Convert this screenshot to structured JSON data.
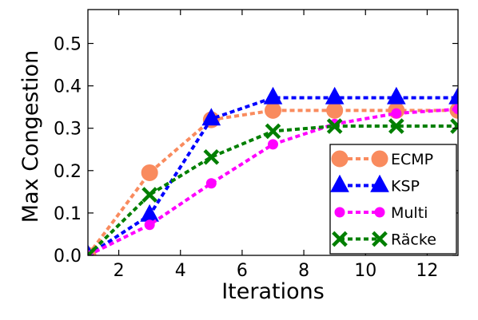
{
  "chart_data": {
    "type": "line",
    "title": "",
    "xlabel": "Iterations",
    "ylabel": "Max Congestion",
    "xlim": [
      1,
      13
    ],
    "ylim": [
      0.0,
      0.58
    ],
    "xticks": [
      2,
      4,
      6,
      8,
      10,
      12
    ],
    "yticks": [
      0.0,
      0.1,
      0.2,
      0.3,
      0.4,
      0.5
    ],
    "ytick_labels": [
      "0.0",
      "0.1",
      "0.2",
      "0.3",
      "0.4",
      "0.5"
    ],
    "grid": false,
    "legend_position": "lower-right",
    "x": [
      1,
      3,
      5,
      7,
      9,
      11,
      13
    ],
    "series": [
      {
        "name": "ECMP",
        "values": [
          0.0,
          0.195,
          0.32,
          0.342,
          0.342,
          0.342,
          0.342
        ],
        "color": "#f98b5e",
        "marker": "circle"
      },
      {
        "name": "KSP",
        "values": [
          0.0,
          0.095,
          0.322,
          0.372,
          0.372,
          0.372,
          0.372
        ],
        "color": "#0000ff",
        "marker": "triangle"
      },
      {
        "name": "Multi",
        "values": [
          0.0,
          0.072,
          0.17,
          0.262,
          0.31,
          0.335,
          0.345
        ],
        "color": "#ff00ff",
        "marker": "small-circle"
      },
      {
        "name": "Räcke",
        "values": [
          0.0,
          0.143,
          0.232,
          0.293,
          0.305,
          0.305,
          0.305
        ],
        "color": "#007f00",
        "marker": "x"
      }
    ]
  }
}
